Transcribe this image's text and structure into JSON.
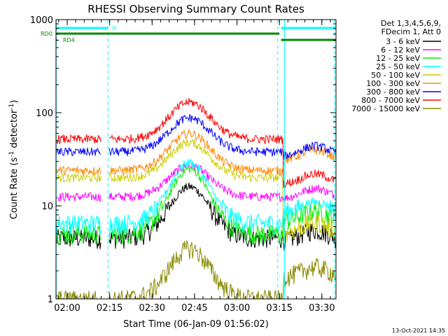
{
  "chart_data": {
    "type": "line",
    "title": "RHESSI Observing Summary Count Rates",
    "xlabel": "Start Time (06-Jan-09 01:56:02)",
    "ylabel_main": "Count Rate (s",
    "ylabel_sup": "-1",
    "ylabel_tail": " detector",
    "ylabel_close": ")",
    "x_range_hours": [
      1.9339,
      3.5833
    ],
    "y_range": [
      1,
      1000
    ],
    "y_scale": "log",
    "x_ticks": [
      {
        "label": "02:00",
        "t": 2.0
      },
      {
        "label": "02:15",
        "t": 2.25
      },
      {
        "label": "02:30",
        "t": 2.5
      },
      {
        "label": "02:45",
        "t": 2.75
      },
      {
        "label": "03:00",
        "t": 3.0
      },
      {
        "label": "03:15",
        "t": 3.25
      },
      {
        "label": "03:30",
        "t": 3.5
      }
    ],
    "y_ticks": [
      {
        "label": "1",
        "v": 1
      },
      {
        "label": "10",
        "v": 10
      },
      {
        "label": "100",
        "v": 100
      },
      {
        "label": "1000",
        "v": 1000
      }
    ],
    "legend_header": [
      "Det 1,3,4,5,6,9,",
      "FDecim 1, Att 0"
    ],
    "legend_position": "right",
    "series": [
      {
        "name": "3 - 6 keV",
        "color": "#000000",
        "base1": 4.5,
        "peak": 16,
        "base2": 5.0
      },
      {
        "name": "6 - 12 keV",
        "color": "#ff00ff",
        "base1": 12.5,
        "peak": 27,
        "base2": 14.0
      },
      {
        "name": "12 - 25 keV",
        "color": "#00ee00",
        "base1": 5.0,
        "peak": 25,
        "base2": 8.0
      },
      {
        "name": "25 - 50 keV",
        "color": "#00ffff",
        "base1": 6.5,
        "peak": 29,
        "base2": 10.0
      },
      {
        "name": "50 - 100 keV",
        "color": "#cccc00",
        "base1": 20,
        "peak": 48,
        "base2": 6.0
      },
      {
        "name": "100 - 300 keV",
        "color": "#ff8800",
        "base1": 24,
        "peak": 60,
        "base2": 36
      },
      {
        "name": "300 - 800 keV",
        "color": "#0000ff",
        "base1": 38,
        "peak": 88,
        "base2": 40
      },
      {
        "name": "800 - 7000 keV",
        "color": "#ff0000",
        "base1": 52,
        "peak": 130,
        "base2": 20
      },
      {
        "name": "7000 - 15000 keV",
        "color": "#888800",
        "base1": 1.0,
        "peak": 3.5,
        "base2": 2.0
      }
    ],
    "flags": [
      {
        "label": "N",
        "color": "#00ffff",
        "intervals": [
          [
            1.9339,
            2.24
          ],
          [
            3.26,
            3.5833
          ]
        ]
      },
      {
        "label": "RD0",
        "color": "#008800",
        "intervals": [
          [
            1.9339,
            3.25
          ]
        ]
      },
      {
        "label": "RD4",
        "color": "#008800",
        "intervals": [
          [
            1.9339,
            1.94
          ],
          [
            3.26,
            3.5833
          ]
        ]
      }
    ],
    "night_markers": [
      1.935,
      2.24,
      3.24,
      3.28,
      3.575
    ],
    "grid": false
  },
  "footer": {
    "timestamp": "13-Oct-2021 14:35"
  }
}
